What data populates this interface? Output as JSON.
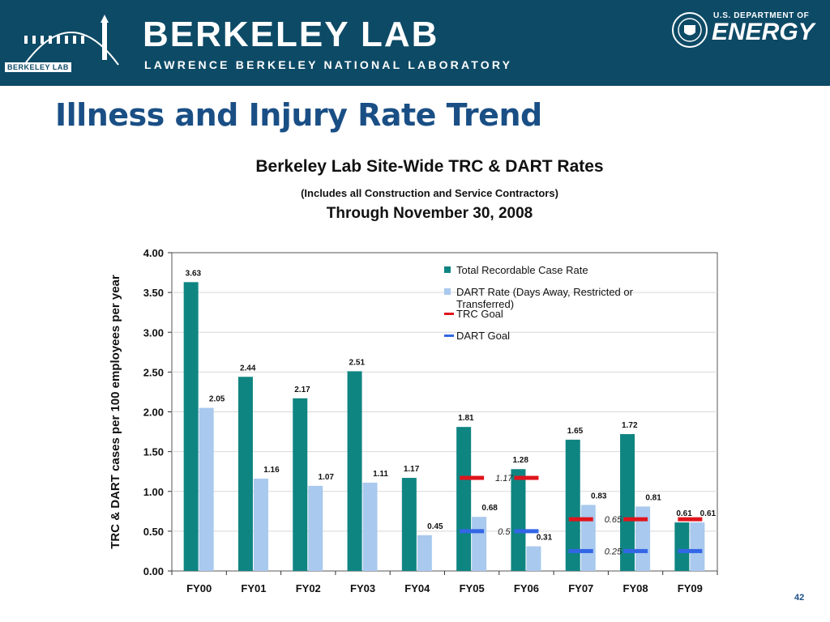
{
  "header": {
    "logo_text": "BERKELEY LAB",
    "brand_main": "BERKELEY LAB",
    "brand_sub": "LAWRENCE BERKELEY NATIONAL LABORATORY",
    "doe_top": "U.S. DEPARTMENT OF",
    "doe_main": "ENERGY"
  },
  "slide": {
    "title": "Illness and Injury Rate Trend",
    "page_number": "42"
  },
  "colors": {
    "banner": "#0d4a66",
    "trc_bar": "#0f8582",
    "dart_bar": "#a9c9ee",
    "trc_goal": "#e0141c",
    "dart_goal": "#3366e6",
    "title": "#1a4f85"
  },
  "chart_data": {
    "type": "bar",
    "title": "Berkeley Lab Site-Wide TRC & DART Rates",
    "subtitle": "(Includes all Construction and Service Contractors)",
    "subtitle2": "Through November 30, 2008",
    "xlabel": "",
    "ylabel": "TRC & DART cases per 100 employees per year",
    "ylim": [
      0,
      4
    ],
    "yticks": [
      "0.00",
      "0.50",
      "1.00",
      "1.50",
      "2.00",
      "2.50",
      "3.00",
      "3.50",
      "4.00"
    ],
    "categories": [
      "FY00",
      "FY01",
      "FY02",
      "FY03",
      "FY04",
      "FY05",
      "FY06",
      "FY07",
      "FY08",
      "FY09"
    ],
    "series": [
      {
        "name": "Total Recordable Case Rate",
        "values": [
          3.63,
          2.44,
          2.17,
          2.51,
          1.17,
          1.81,
          1.28,
          1.65,
          1.72,
          0.61
        ],
        "labels": [
          "3.63",
          "2.44",
          "2.17",
          "2.51",
          "1.17",
          "1.81",
          "1.28",
          "1.65",
          "1.72",
          "0.61"
        ]
      },
      {
        "name": "DART Rate (Days Away, Restricted or Transferred)",
        "values": [
          2.05,
          1.16,
          1.07,
          1.11,
          0.45,
          0.68,
          0.31,
          0.83,
          0.81,
          0.61
        ],
        "labels": [
          "2.05",
          "1.16",
          "1.07",
          "1.11",
          "0.45",
          "0.68",
          "0.31",
          "0.83",
          "0.81",
          "0.61"
        ]
      }
    ],
    "goals": [
      {
        "name": "TRC Goal",
        "segments": [
          {
            "categories": [
              "FY05",
              "FY06"
            ],
            "value": 1.17,
            "label": "1.17"
          },
          {
            "categories": [
              "FY07",
              "FY08",
              "FY09"
            ],
            "value": 0.65,
            "label": "0.65"
          }
        ]
      },
      {
        "name": "DART Goal",
        "segments": [
          {
            "categories": [
              "FY05",
              "FY06"
            ],
            "value": 0.5,
            "label": "0.5"
          },
          {
            "categories": [
              "FY07",
              "FY08",
              "FY09"
            ],
            "value": 0.25,
            "label": "0.25"
          }
        ]
      }
    ],
    "legend_position": "top-right",
    "grid": "horizontal"
  }
}
